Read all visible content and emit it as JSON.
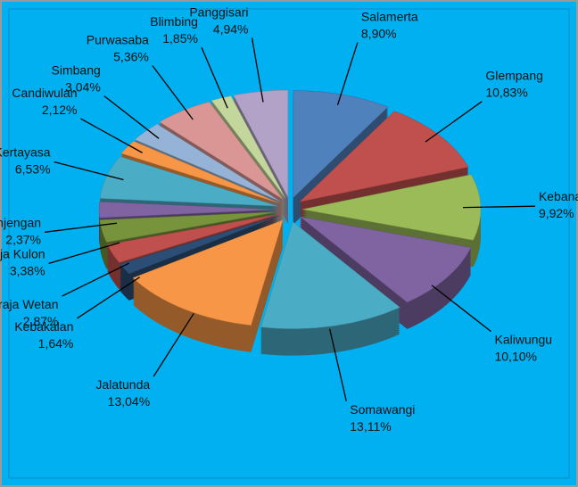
{
  "chart_data": {
    "type": "pie",
    "categories": [
      "Salamerta",
      "Glempang",
      "Kebanaran",
      "Kaliwungu",
      "Somawangi",
      "Jalatunda",
      "Kebakalan",
      "Mandiraja Wetan",
      "Mandiraja Kulon",
      "Banjengan",
      "Kertayasa",
      "Candiwulan",
      "Simbang",
      "Purwasaba",
      "Blimbing",
      "Panggisari"
    ],
    "values": [
      8.9,
      10.83,
      9.92,
      10.1,
      13.11,
      13.04,
      1.64,
      2.87,
      3.38,
      2.37,
      6.53,
      2.12,
      3.04,
      5.36,
      1.85,
      4.94
    ],
    "value_labels": [
      "8,90%",
      "10,83%",
      "9,92%",
      "10,10%",
      "13,11%",
      "13,04%",
      "1,64%",
      "2,87%",
      "3,38%",
      "2,37%",
      "6,53%",
      "2,12%",
      "3,04%",
      "5,36%",
      "1,85%",
      "4,94%"
    ],
    "colors": [
      "#4f81bd",
      "#c0504d",
      "#9bbb59",
      "#8064a2",
      "#4bacc6",
      "#f79646",
      "#2c4d75",
      "#c0504d",
      "#77933c",
      "#8064a2",
      "#4bacc6",
      "#f79646",
      "#95b3d7",
      "#d99694",
      "#c3d69b",
      "#b3a2c7"
    ]
  }
}
